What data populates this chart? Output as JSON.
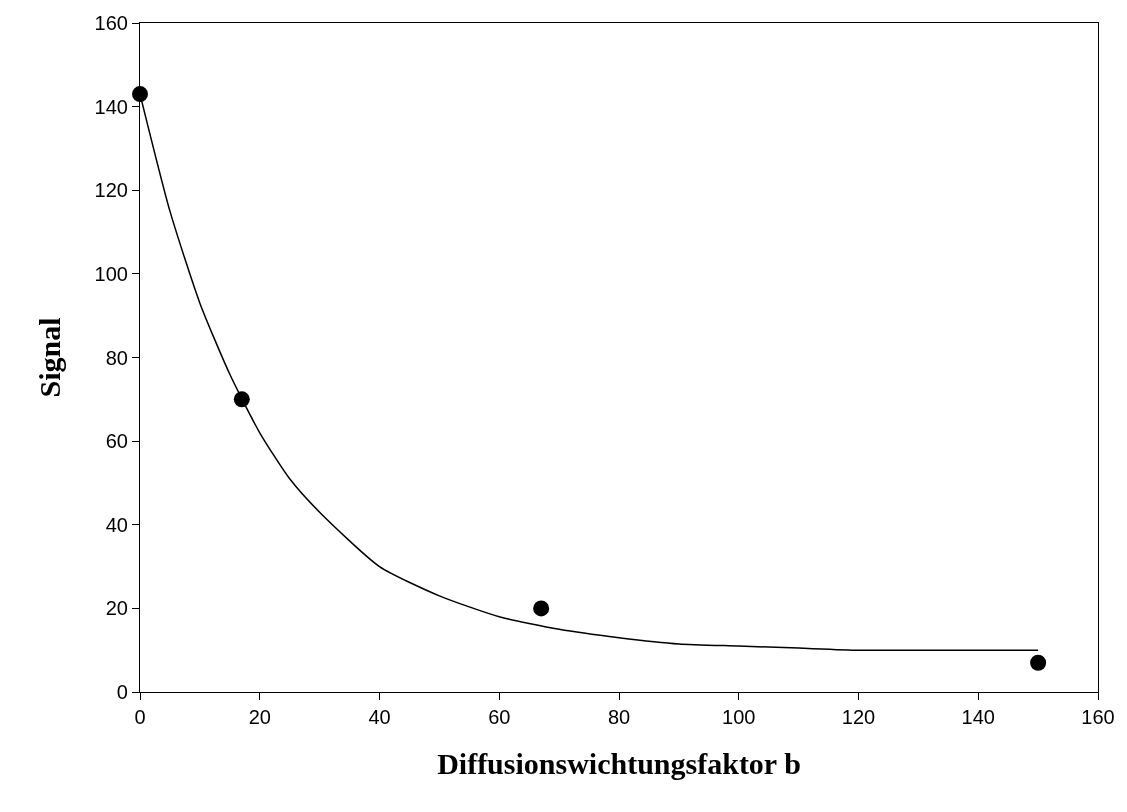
{
  "chart_data": {
    "type": "scatter",
    "xlabel": "Diffusionswichtungsfaktor b",
    "ylabel": "Signal",
    "xlim": [
      0,
      160
    ],
    "xticks": [
      0,
      20,
      40,
      60,
      80,
      100,
      120,
      140,
      160
    ],
    "ylim": [
      0,
      160
    ],
    "yticks": [
      0,
      20,
      40,
      60,
      80,
      100,
      120,
      140,
      160
    ],
    "series": [
      {
        "color": "#000000",
        "marker": "circle",
        "x": [
          0,
          17,
          67,
          150
        ],
        "values": [
          143,
          70,
          20,
          7
        ]
      },
      {
        "type": "line",
        "color": "#000000",
        "line_style": "solid",
        "marker": "none",
        "x": [
          0,
          5,
          10,
          15,
          20,
          25,
          30,
          40,
          50,
          60,
          70,
          80,
          90,
          100,
          110,
          120,
          130,
          140,
          150
        ],
        "values": [
          143,
          115,
          93,
          76,
          62,
          51,
          43,
          30,
          23,
          18,
          15,
          13,
          11.5,
          11,
          10.5,
          10,
          10,
          10,
          10
        ]
      }
    ]
  }
}
